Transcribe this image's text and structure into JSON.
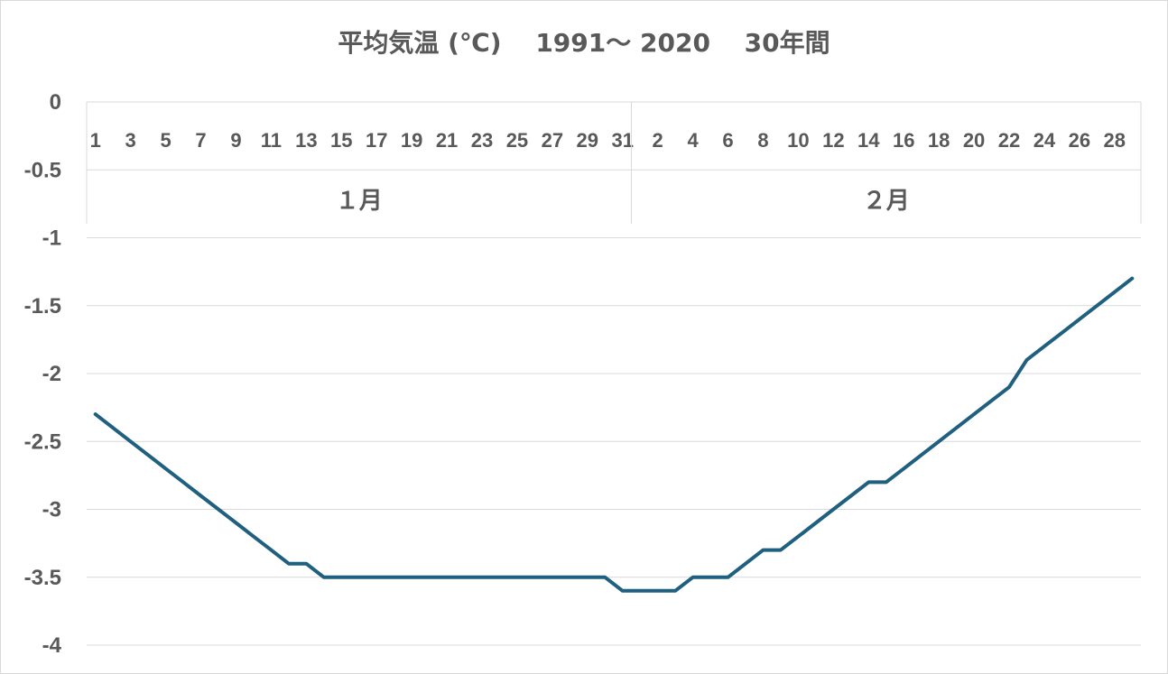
{
  "chart_data": {
    "type": "line",
    "title": "平均気温 (℃)　 1991～ 2020　 30年間",
    "xlabel": "",
    "ylabel": "",
    "ylim": [
      -4,
      0
    ],
    "y_ticks": [
      "0",
      "-0.5",
      "-1",
      "-1.5",
      "-2",
      "-2.5",
      "-3",
      "-3.5",
      "-4"
    ],
    "y_tick_values": [
      0,
      -0.5,
      -1,
      -1.5,
      -2,
      -2.5,
      -3,
      -3.5,
      -4
    ],
    "grid": true,
    "legend": "none",
    "line_color": "#1f5f7f",
    "groups": [
      {
        "label": "１月",
        "day_labels": [
          "1",
          "3",
          "5",
          "7",
          "9",
          "11",
          "13",
          "15",
          "17",
          "19",
          "21",
          "23",
          "25",
          "27",
          "29",
          "31"
        ],
        "values": [
          -2.3,
          -2.4,
          -2.5,
          -2.6,
          -2.7,
          -2.8,
          -2.9,
          -3.0,
          -3.1,
          -3.2,
          -3.3,
          -3.4,
          -3.4,
          -3.5,
          -3.5,
          -3.5,
          -3.5,
          -3.5,
          -3.5,
          -3.5,
          -3.5,
          -3.5,
          -3.5,
          -3.5,
          -3.5,
          -3.5,
          -3.5,
          -3.5,
          -3.5,
          -3.5,
          -3.6
        ]
      },
      {
        "label": "２月",
        "day_labels": [
          "2",
          "4",
          "6",
          "8",
          "10",
          "12",
          "14",
          "16",
          "18",
          "20",
          "22",
          "24",
          "26",
          "28"
        ],
        "values": [
          -3.6,
          -3.6,
          -3.6,
          -3.5,
          -3.5,
          -3.5,
          -3.4,
          -3.3,
          -3.3,
          -3.2,
          -3.1,
          -3.0,
          -2.9,
          -2.8,
          -2.8,
          -2.7,
          -2.6,
          -2.5,
          -2.4,
          -2.3,
          -2.2,
          -2.1,
          -1.9,
          -1.8,
          -1.7,
          -1.6,
          -1.5,
          -1.4,
          -1.3
        ]
      }
    ]
  }
}
